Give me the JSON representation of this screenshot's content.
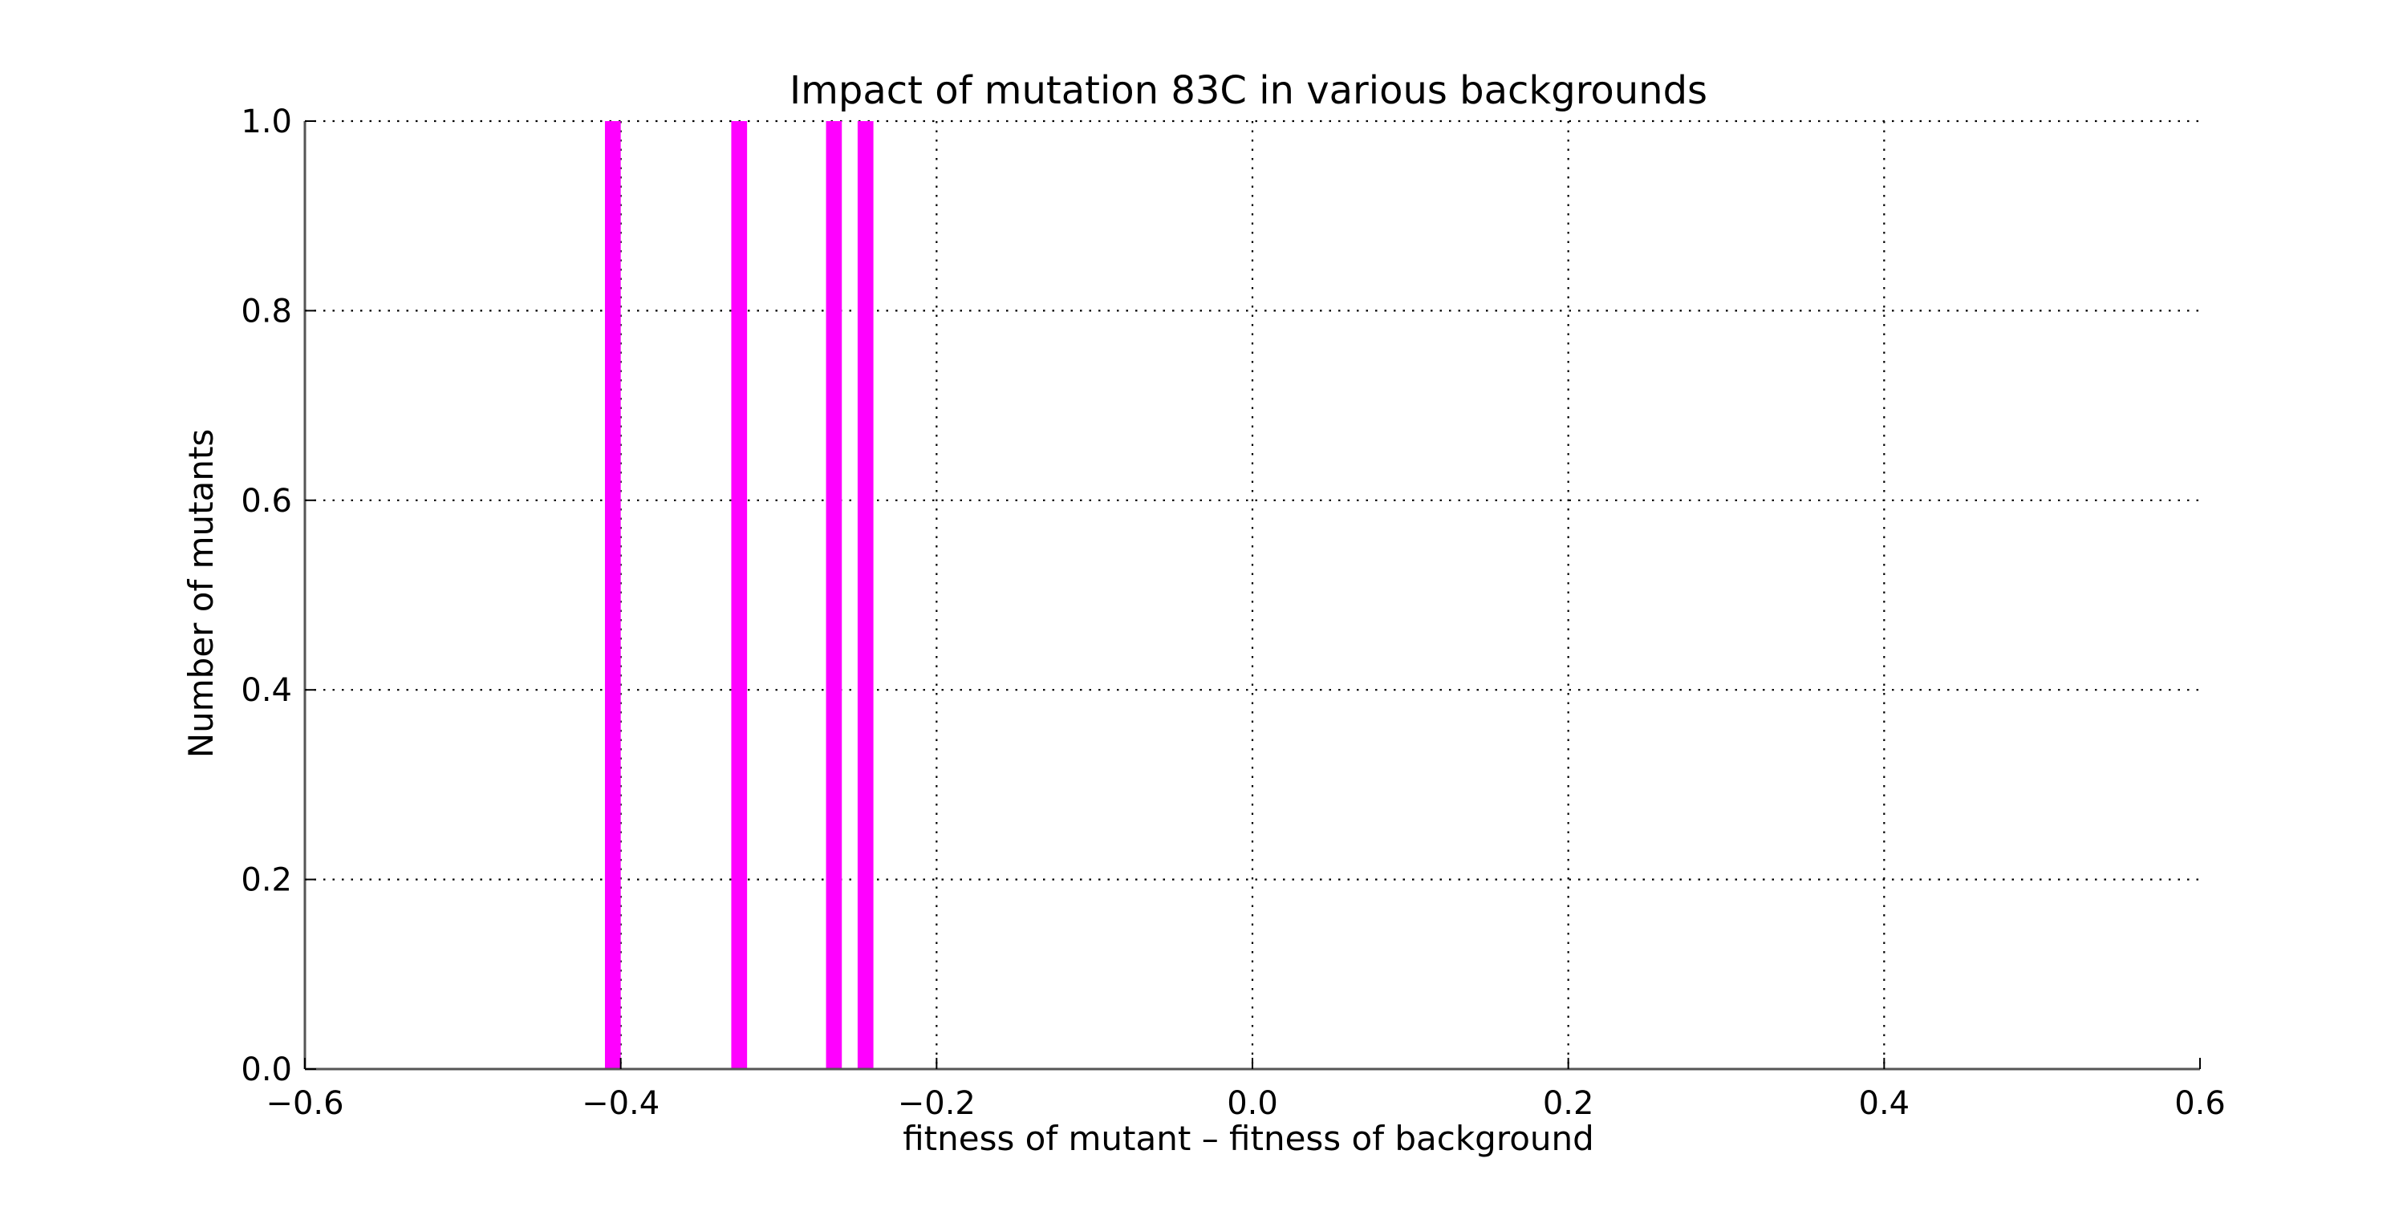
{
  "chart_data": {
    "type": "bar",
    "title": "Impact of mutation 83C in various backgrounds",
    "xlabel": "fitness of mutant  –  fitness of background",
    "ylabel": "Number of mutants",
    "xlim": [
      -0.6,
      0.6
    ],
    "ylim": [
      0.0,
      1.0
    ],
    "xticks": [
      -0.6,
      -0.4,
      -0.2,
      0.0,
      0.2,
      0.4,
      0.6
    ],
    "xtick_labels": [
      "−0.6",
      "−0.4",
      "−0.2",
      "0.0",
      "0.2",
      "0.4",
      "0.6"
    ],
    "yticks": [
      0.0,
      0.2,
      0.4,
      0.6,
      0.8,
      1.0
    ],
    "ytick_labels": [
      "0.0",
      "0.2",
      "0.4",
      "0.6",
      "0.8",
      "1.0"
    ],
    "grid": true,
    "bin_width": 0.01,
    "bars": [
      {
        "x": -0.405,
        "count": 1
      },
      {
        "x": -0.325,
        "count": 1
      },
      {
        "x": -0.265,
        "count": 1
      },
      {
        "x": -0.245,
        "count": 1
      }
    ],
    "bar_color": "#ff00ff"
  }
}
